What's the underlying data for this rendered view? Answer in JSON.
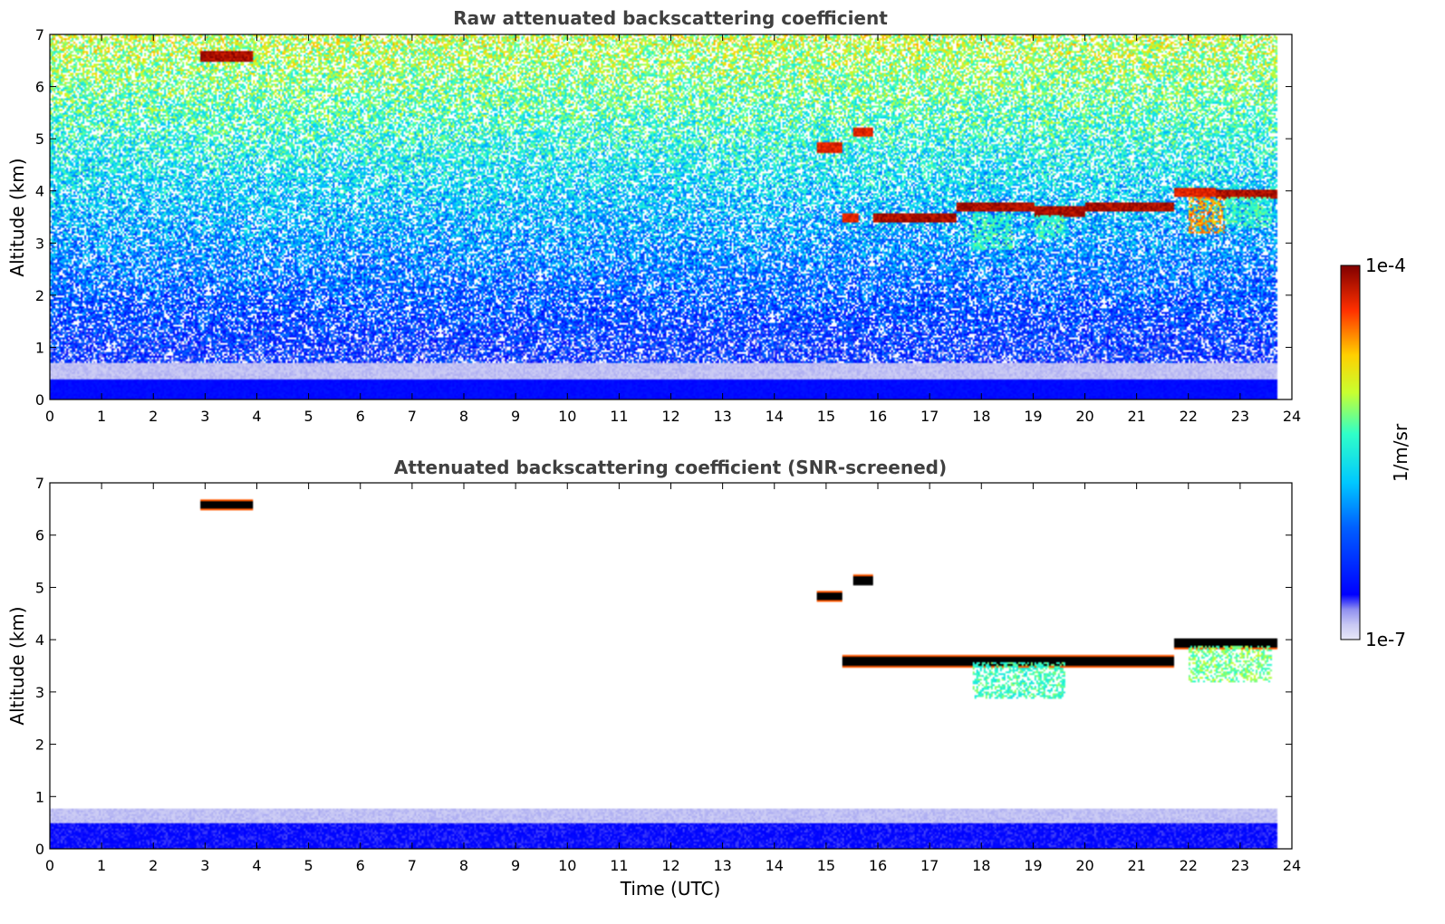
{
  "chart_data": [
    {
      "type": "heatmap",
      "title": "Raw attenuated backscattering coefficient",
      "xlabel": "",
      "ylabel": "Altitude (km)",
      "xlim": [
        0,
        24
      ],
      "ylim": [
        0,
        7
      ],
      "xticks": [
        0,
        1,
        2,
        3,
        4,
        5,
        6,
        7,
        8,
        9,
        10,
        11,
        12,
        13,
        14,
        15,
        16,
        17,
        18,
        19,
        20,
        21,
        22,
        23,
        24
      ],
      "yticks": [
        0,
        1,
        2,
        3,
        4,
        5,
        6,
        7
      ],
      "data_time_end": 23.7,
      "features": [
        {
          "kind": "cloud",
          "t_start": 2.9,
          "t_end": 3.9,
          "alt_km": 6.6,
          "level": 1.0
        },
        {
          "kind": "cloud",
          "t_start": 14.8,
          "t_end": 15.3,
          "alt_km": 4.85,
          "level": 0.95
        },
        {
          "kind": "cloud",
          "t_start": 15.5,
          "t_end": 15.9,
          "alt_km": 5.15,
          "level": 0.95
        },
        {
          "kind": "cloud",
          "t_start": 15.3,
          "t_end": 15.6,
          "alt_km": 3.5,
          "level": 0.95
        },
        {
          "kind": "cloud",
          "t_start": 15.9,
          "t_end": 17.5,
          "alt_km": 3.5,
          "level": 1.0
        },
        {
          "kind": "cloud",
          "t_start": 17.5,
          "t_end": 19.0,
          "alt_km": 3.7,
          "level": 1.0
        },
        {
          "kind": "cloud",
          "t_start": 19.0,
          "t_end": 20.0,
          "alt_km": 3.62,
          "level": 1.0
        },
        {
          "kind": "cloud",
          "t_start": 20.0,
          "t_end": 21.7,
          "alt_km": 3.7,
          "level": 1.0
        },
        {
          "kind": "cloud",
          "t_start": 21.7,
          "t_end": 22.5,
          "alt_km": 4.0,
          "level": 0.95
        },
        {
          "kind": "cloud",
          "t_start": 22.5,
          "t_end": 23.7,
          "alt_km": 3.95,
          "level": 1.0
        },
        {
          "kind": "virga",
          "t_start": 17.8,
          "t_end": 18.6,
          "alt_top_km": 3.6,
          "alt_bottom_km": 2.9,
          "level": 0.55
        },
        {
          "kind": "virga",
          "t_start": 19.0,
          "t_end": 19.6,
          "alt_top_km": 3.55,
          "alt_bottom_km": 3.1,
          "level": 0.55
        },
        {
          "kind": "virga",
          "t_start": 22.0,
          "t_end": 22.7,
          "alt_top_km": 3.9,
          "alt_bottom_km": 3.2,
          "level": 0.8
        },
        {
          "kind": "virga",
          "t_start": 22.7,
          "t_end": 23.6,
          "alt_top_km": 3.9,
          "alt_bottom_km": 3.3,
          "level": 0.55
        },
        {
          "kind": "boundary_layer",
          "t_start": 0,
          "t_end": 23.7,
          "alt_top_km": 0.4,
          "level": 0.25
        }
      ]
    },
    {
      "type": "heatmap",
      "title": "Attenuated backscattering coefficient (SNR-screened)",
      "xlabel": "Time (UTC)",
      "ylabel": "Altitude (km)",
      "xlim": [
        0,
        24
      ],
      "ylim": [
        0,
        7
      ],
      "xticks": [
        0,
        1,
        2,
        3,
        4,
        5,
        6,
        7,
        8,
        9,
        10,
        11,
        12,
        13,
        14,
        15,
        16,
        17,
        18,
        19,
        20,
        21,
        22,
        23,
        24
      ],
      "yticks": [
        0,
        1,
        2,
        3,
        4,
        5,
        6,
        7
      ],
      "data_time_end": 23.7,
      "features": [
        {
          "kind": "cloud_saturated",
          "t_start": 2.9,
          "t_end": 3.9,
          "alt_km": 6.6
        },
        {
          "kind": "cloud_saturated",
          "t_start": 14.8,
          "t_end": 15.3,
          "alt_km": 4.85
        },
        {
          "kind": "cloud_saturated",
          "t_start": 15.5,
          "t_end": 15.9,
          "alt_km": 5.15
        },
        {
          "kind": "cloud_saturated",
          "t_start": 15.3,
          "t_end": 21.7,
          "alt_km": 3.6
        },
        {
          "kind": "cloud_saturated",
          "t_start": 21.7,
          "t_end": 23.7,
          "alt_km": 3.95
        },
        {
          "kind": "virga",
          "t_start": 17.8,
          "t_end": 19.6,
          "alt_top_km": 3.6,
          "alt_bottom_km": 2.9,
          "level": 0.55
        },
        {
          "kind": "virga",
          "t_start": 22.0,
          "t_end": 23.6,
          "alt_top_km": 3.9,
          "alt_bottom_km": 3.2,
          "level": 0.6
        },
        {
          "kind": "boundary_layer",
          "t_start": 0,
          "t_end": 23.7,
          "alt_top_km": 0.5,
          "level": 0.2
        }
      ]
    }
  ],
  "colorbar": {
    "label": "1/m/sr",
    "max_label": "1e-4",
    "min_label": "1e-7",
    "colormap": "jet",
    "scale": "log"
  },
  "colors": {
    "saturated": "#000000",
    "background": "#ffffff",
    "title": "#404040"
  }
}
